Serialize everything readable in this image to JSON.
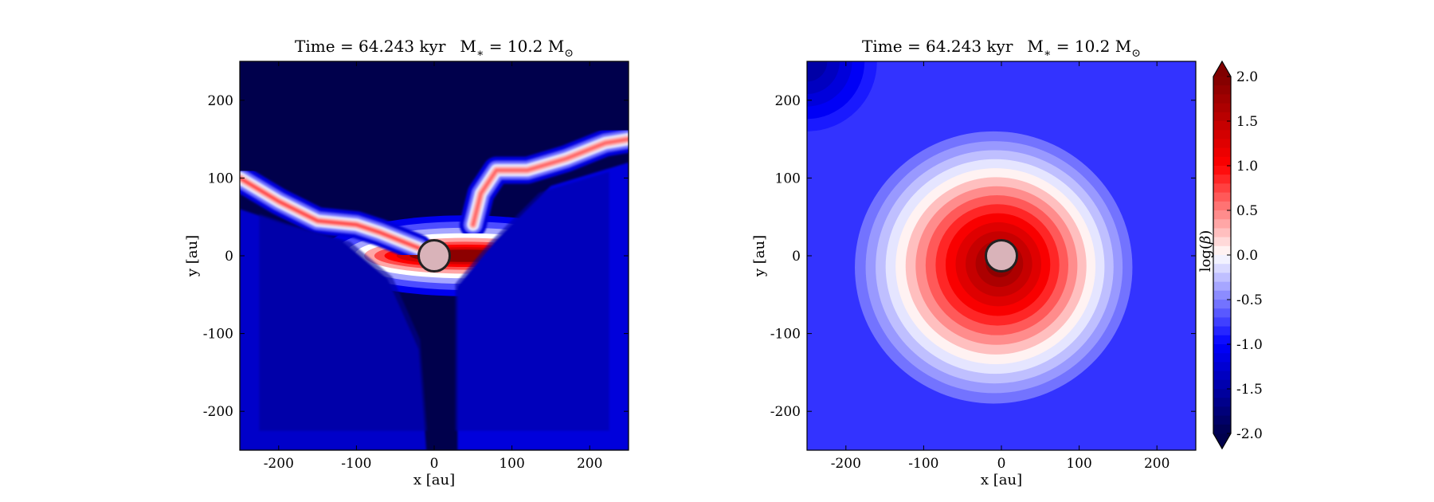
{
  "chart_data": [
    {
      "type": "heatmap",
      "panel": "left",
      "title": {
        "time_prefix": "Time = 64.243 kyr",
        "mass_prefix": "M",
        "mass_sub": "∗",
        "mass_value": " = 10.2 M",
        "mass_unit_symbol": "⊙"
      },
      "xlabel": "x [au]",
      "ylabel": "y [au]",
      "xlim": [
        -250,
        250
      ],
      "ylim": [
        -250,
        250
      ],
      "xticks": [
        -200,
        -100,
        0,
        100,
        200
      ],
      "yticks": [
        -200,
        -100,
        0,
        100,
        200
      ],
      "xtick_labels": [
        "-200",
        "-100",
        "0",
        "100",
        "200"
      ],
      "ytick_labels": [
        "-200",
        "-100",
        "0",
        "100",
        "200"
      ],
      "quantity": "log(β)",
      "value_range": [
        -2.0,
        2.0
      ],
      "background_value": -2.0,
      "features": [
        {
          "kind": "disk",
          "cx": 40,
          "cy": 0,
          "rx": 130,
          "ry": 20,
          "peak": 1.9,
          "halo": 0.3
        },
        {
          "kind": "filament",
          "points": [
            [
              -250,
              100
            ],
            [
              -200,
              70
            ],
            [
              -150,
              45
            ],
            [
              -100,
              40
            ],
            [
              -70,
              30
            ],
            [
              -20,
              10
            ]
          ],
          "peak": 0.7
        },
        {
          "kind": "filament",
          "points": [
            [
              50,
              40
            ],
            [
              60,
              80
            ],
            [
              80,
              110
            ],
            [
              120,
              110
            ],
            [
              170,
              125
            ],
            [
              220,
              145
            ],
            [
              250,
              150
            ]
          ],
          "peak": 0.6
        },
        {
          "kind": "lobe",
          "region": "lower-left",
          "value": -1.3
        },
        {
          "kind": "lobe",
          "region": "right",
          "value": -1.2
        }
      ],
      "sink_marker": {
        "x": 0,
        "y": 0,
        "radius": 20,
        "fill": "#d9b3b9",
        "edge": "#222222"
      }
    },
    {
      "type": "heatmap",
      "panel": "right",
      "title": {
        "time_prefix": "Time = 64.243 kyr",
        "mass_prefix": "M",
        "mass_sub": "∗",
        "mass_value": " = 10.2 M",
        "mass_unit_symbol": "⊙"
      },
      "xlabel": "x [au]",
      "ylabel": "y [au]",
      "xlim": [
        -250,
        250
      ],
      "ylim": [
        -250,
        250
      ],
      "xticks": [
        -200,
        -100,
        0,
        100,
        200
      ],
      "yticks": [
        -200,
        -100,
        0,
        100,
        200
      ],
      "xtick_labels": [
        "-200",
        "-100",
        "0",
        "100",
        "200"
      ],
      "ytick_labels": [
        "-200",
        "-100",
        "0",
        "100",
        "200"
      ],
      "quantity": "log(β)",
      "value_range": [
        -2.0,
        2.0
      ],
      "background_value": -0.8,
      "features": [
        {
          "kind": "blob",
          "cx": -10,
          "cy": -15,
          "r": 100,
          "peak": 1.9
        },
        {
          "kind": "corner",
          "region": "top-left",
          "value": -1.4
        }
      ],
      "sink_marker": {
        "x": 0,
        "y": 0,
        "radius": 20,
        "fill": "#d9b3b9",
        "edge": "#222222"
      }
    }
  ],
  "colorbar": {
    "label": "log(β)",
    "label_text": "log(",
    "label_symbol": "β",
    "label_end": ")",
    "ticks": [
      2.0,
      1.5,
      1.0,
      0.5,
      0.0,
      -0.5,
      -1.0,
      -1.5,
      -2.0
    ],
    "tick_labels": [
      "2.0",
      "1.5",
      "1.0",
      "0.5",
      "0.0",
      "-0.5",
      "-1.0",
      "-1.5",
      "-2.0"
    ],
    "range": [
      -2.0,
      2.0
    ],
    "extend": "both",
    "cmap": "seismic",
    "colors": [
      "#00004c",
      "#0000ff",
      "#ffffff",
      "#ff0000",
      "#800000"
    ]
  }
}
